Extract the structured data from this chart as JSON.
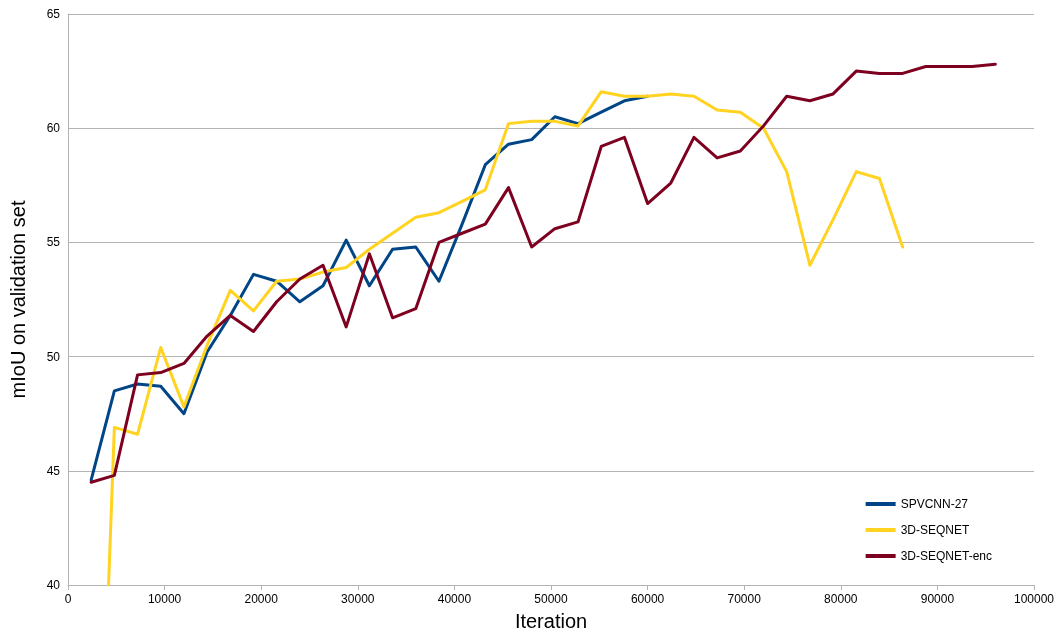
{
  "chart_data": {
    "type": "line",
    "xlabel": "Iteration",
    "ylabel": "mIoU on validation set",
    "xlim": [
      0,
      100000
    ],
    "xticks": [
      0,
      10000,
      20000,
      30000,
      40000,
      50000,
      60000,
      70000,
      80000,
      90000,
      100000
    ],
    "ylim": [
      40,
      65
    ],
    "yticks": [
      40,
      45,
      50,
      55,
      60,
      65
    ],
    "grid": "y",
    "legend": "bottom right",
    "marker": "none",
    "line_style": "solid",
    "series": [
      {
        "name": "SPVCNN-27",
        "color": "#004586",
        "x": [
          2400,
          4800,
          7200,
          9600,
          12000,
          14400,
          16800,
          19200,
          21600,
          24000,
          26400,
          28800,
          31200,
          33600,
          36000,
          38400,
          40800,
          43200,
          45600,
          48000,
          50400,
          52800,
          55200,
          57600,
          60000
        ],
        "values": [
          44.6,
          48.5,
          48.8,
          48.7,
          47.5,
          50.2,
          51.8,
          53.6,
          53.3,
          52.4,
          53.1,
          55.1,
          53.1,
          54.7,
          54.8,
          53.3,
          55.8,
          58.4,
          59.3,
          59.5,
          60.5,
          60.2,
          60.7,
          61.2,
          61.4
        ]
      },
      {
        "name": "3D-SEQNET",
        "color": "#ffd320",
        "x": [
          4200,
          4800,
          7200,
          9600,
          12000,
          14400,
          16800,
          19200,
          21600,
          24000,
          26400,
          28800,
          31200,
          33600,
          36000,
          38400,
          40800,
          43200,
          45600,
          48000,
          50400,
          52800,
          55200,
          57600,
          60000,
          62400,
          64800,
          67200,
          69600,
          72000,
          74400,
          76800,
          79200,
          81600,
          84000,
          86400
        ],
        "values": [
          40.0,
          46.9,
          46.6,
          50.4,
          47.8,
          50.5,
          52.9,
          52.0,
          53.3,
          53.4,
          53.7,
          53.9,
          54.7,
          55.4,
          56.1,
          56.3,
          56.8,
          57.3,
          60.2,
          60.3,
          60.3,
          60.1,
          61.6,
          61.4,
          61.4,
          61.5,
          61.4,
          60.8,
          60.7,
          60.0,
          58.1,
          54.0,
          56.0,
          58.1,
          57.8,
          54.8
        ]
      },
      {
        "name": "3D-SEQNET-enc",
        "color": "#7e0021",
        "x": [
          2400,
          4800,
          7200,
          9600,
          12000,
          14400,
          16800,
          19200,
          21600,
          24000,
          26400,
          28800,
          31200,
          33600,
          36000,
          38400,
          40800,
          43200,
          45600,
          48000,
          50400,
          52800,
          55200,
          57600,
          60000,
          62400,
          64800,
          67200,
          69600,
          72000,
          74400,
          76800,
          79200,
          81600,
          84000,
          86400,
          88800,
          91200,
          93600,
          96000
        ],
        "values": [
          44.5,
          44.8,
          49.2,
          49.3,
          49.7,
          50.9,
          51.8,
          51.1,
          52.4,
          53.4,
          54.0,
          51.3,
          54.5,
          51.7,
          52.1,
          55.0,
          55.4,
          55.8,
          57.4,
          54.8,
          55.6,
          55.9,
          59.2,
          59.6,
          56.7,
          57.6,
          59.6,
          58.7,
          59.0,
          60.1,
          61.4,
          61.2,
          61.5,
          62.5,
          62.4,
          62.4,
          62.7,
          62.7,
          62.7,
          62.8
        ]
      }
    ]
  }
}
